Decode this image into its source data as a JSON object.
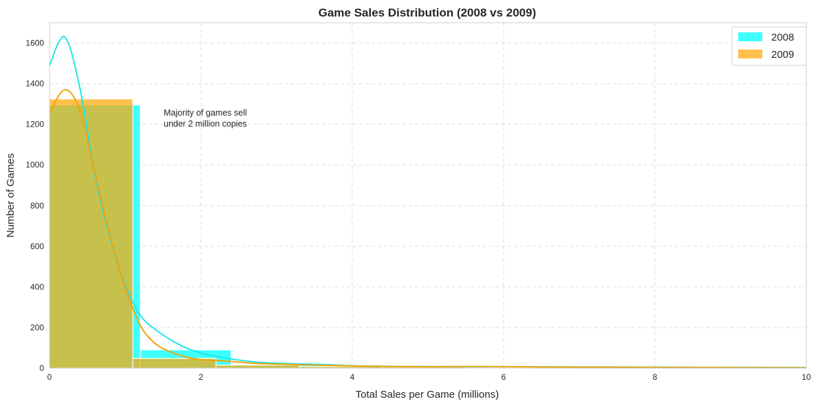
{
  "chart_data": {
    "type": "histogram",
    "title": "Game Sales Distribution (2008 vs 2009)",
    "xlabel": "Total Sales per Game (millions)",
    "ylabel": "Number of Games",
    "xlim": [
      0,
      10
    ],
    "ylim": [
      0,
      1700
    ],
    "xticks": [
      0,
      2,
      4,
      6,
      8,
      10
    ],
    "yticks": [
      0,
      200,
      400,
      600,
      800,
      1000,
      1200,
      1400,
      1600
    ],
    "grid": true,
    "grid_style": "dashed",
    "legend_position": "top-right",
    "annotation": {
      "lines": [
        "Majority of games sell",
        "under 2 million copies"
      ],
      "x": 1.5,
      "y": 1250
    },
    "series": [
      {
        "name": "2008",
        "color": "#00ffff",
        "line_color": "#1ee6e6",
        "opacity": 0.75,
        "bins": [
          {
            "x0": 0.0,
            "x1": 1.2,
            "count": 1295
          },
          {
            "x0": 1.2,
            "x1": 2.4,
            "count": 90
          },
          {
            "x0": 2.4,
            "x1": 3.6,
            "count": 18
          },
          {
            "x0": 3.6,
            "x1": 4.8,
            "count": 8
          },
          {
            "x0": 4.8,
            "x1": 6.0,
            "count": 5
          },
          {
            "x0": 6.0,
            "x1": 7.2,
            "count": 3
          },
          {
            "x0": 7.2,
            "x1": 8.4,
            "count": 3
          },
          {
            "x0": 8.4,
            "x1": 9.6,
            "count": 2
          },
          {
            "x0": 9.6,
            "x1": 10.8,
            "count": 1
          }
        ],
        "kde": {
          "x": [
            0,
            0.2,
            0.4,
            0.6,
            0.8,
            1.0,
            1.2,
            1.4,
            1.6,
            1.8,
            2.0,
            2.2,
            2.5,
            2.8,
            3.2,
            3.6,
            4.0,
            4.5,
            5.0,
            5.5,
            6.0,
            7.0,
            8.0,
            9.0,
            10.0
          ],
          "y": [
            1490,
            1630,
            1380,
            950,
            640,
            410,
            260,
            190,
            140,
            100,
            75,
            58,
            40,
            28,
            22,
            18,
            12,
            9,
            8,
            7,
            7,
            6,
            5,
            4,
            3
          ]
        }
      },
      {
        "name": "2009",
        "color": "#ffa500",
        "line_color": "#f0a30a",
        "opacity": 0.7,
        "bins": [
          {
            "x0": 0.0,
            "x1": 1.1,
            "count": 1325
          },
          {
            "x0": 1.1,
            "x1": 2.2,
            "count": 48
          },
          {
            "x0": 2.2,
            "x1": 3.3,
            "count": 15
          },
          {
            "x0": 3.3,
            "x1": 4.4,
            "count": 8
          },
          {
            "x0": 4.4,
            "x1": 5.5,
            "count": 6
          },
          {
            "x0": 5.5,
            "x1": 6.6,
            "count": 4
          },
          {
            "x0": 6.6,
            "x1": 7.7,
            "count": 3
          },
          {
            "x0": 7.7,
            "x1": 8.8,
            "count": 2
          },
          {
            "x0": 8.8,
            "x1": 9.9,
            "count": 1
          }
        ],
        "kde": {
          "x": [
            0,
            0.2,
            0.4,
            0.6,
            0.8,
            1.0,
            1.2,
            1.4,
            1.6,
            1.8,
            2.0,
            2.2,
            2.5,
            2.8,
            3.2,
            3.6,
            4.0,
            4.5,
            5.0,
            5.5,
            6.0,
            7.0,
            8.0,
            9.0,
            10.0
          ],
          "y": [
            1255,
            1370,
            1270,
            960,
            650,
            400,
            210,
            120,
            80,
            55,
            42,
            38,
            30,
            22,
            18,
            14,
            11,
            8,
            7,
            8,
            7,
            5,
            4,
            3,
            2
          ]
        }
      }
    ]
  }
}
